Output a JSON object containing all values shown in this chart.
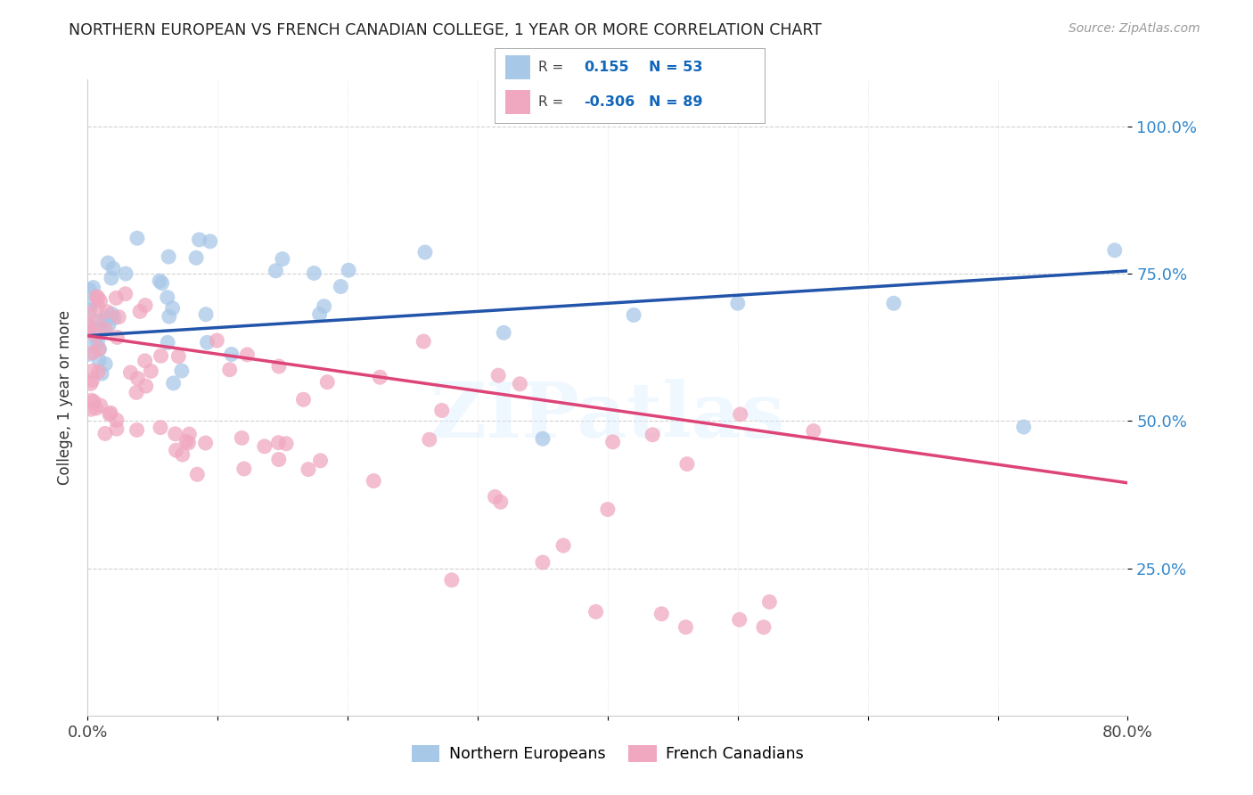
{
  "title": "NORTHERN EUROPEAN VS FRENCH CANADIAN COLLEGE, 1 YEAR OR MORE CORRELATION CHART",
  "source": "Source: ZipAtlas.com",
  "ylabel": "College, 1 year or more",
  "legend_labels": [
    "Northern Europeans",
    "French Canadians"
  ],
  "r_blue": 0.155,
  "n_blue": 53,
  "r_pink": -0.306,
  "n_pink": 89,
  "watermark": "ZIPatlas",
  "blue_color": "#a8c8e8",
  "pink_color": "#f0a8c0",
  "line_blue": "#2255aa",
  "line_pink": "#dd4477",
  "ytick_labels": [
    "25.0%",
    "50.0%",
    "75.0%",
    "100.0%"
  ],
  "ytick_values": [
    0.25,
    0.5,
    0.75,
    1.0
  ],
  "xmin": 0.0,
  "xmax": 0.8,
  "ymin": 0.0,
  "ymax": 1.08,
  "blue_line_y0": 0.645,
  "blue_line_y1": 0.755,
  "pink_line_y0": 0.645,
  "pink_line_y1": 0.395
}
